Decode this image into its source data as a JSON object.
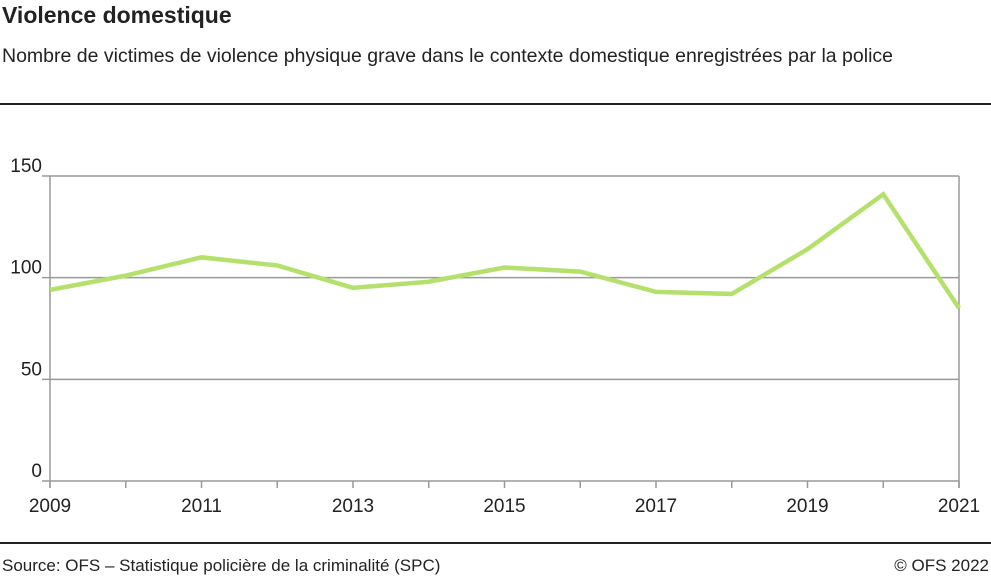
{
  "header": {
    "title": "Violence domestique",
    "subtitle": "Nombre de victimes de violence physique grave dans le contexte domestique enregistrées par la police"
  },
  "footer": {
    "source": "Source: OFS – Statistique policière de la criminalité (SPC)",
    "copyright": "© OFS 2022"
  },
  "chart_data": {
    "type": "line",
    "title": "Violence domestique",
    "xlabel": "",
    "ylabel": "",
    "x": [
      2009,
      2010,
      2011,
      2012,
      2013,
      2014,
      2015,
      2016,
      2017,
      2018,
      2019,
      2020,
      2021
    ],
    "series": [
      {
        "values": [
          94,
          101,
          110,
          106,
          95,
          98,
          105,
          103,
          93,
          92,
          114,
          141,
          85
        ],
        "color": "#b5e06e"
      }
    ],
    "ylim": [
      0,
      150
    ],
    "yticks": [
      0,
      50,
      100,
      150
    ],
    "xtick_labels": [
      "2009",
      "2011",
      "2013",
      "2015",
      "2017",
      "2019",
      "2021"
    ],
    "grid": true,
    "legend": "none"
  }
}
